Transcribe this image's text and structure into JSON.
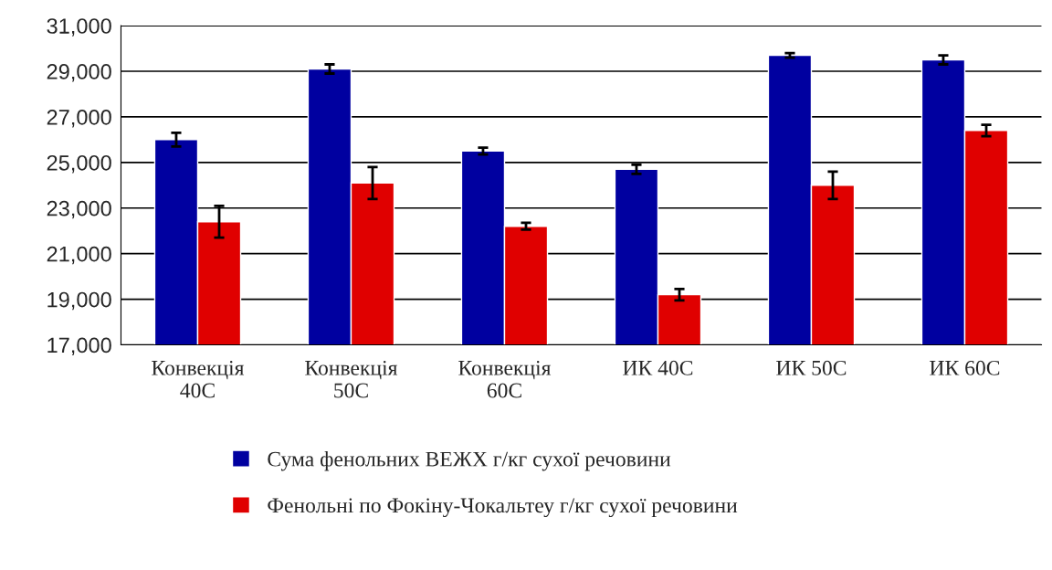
{
  "chart_data": {
    "type": "bar",
    "categories": [
      "Конвекція\n40C",
      "Конвекція\n50C",
      "Конвекція\n60C",
      "ИК 40C",
      "ИК 50C",
      "ИК 60C"
    ],
    "series": [
      {
        "name": "Сума фенольних ВЕЖХ г/кг сухої речовини",
        "color": "#0000a0",
        "values": [
          26000,
          29100,
          25500,
          24700,
          29700,
          29500
        ],
        "errors": [
          300,
          200,
          150,
          200,
          100,
          200
        ]
      },
      {
        "name": "Фенольні по Фокіну-Чокальтеу г/кг сухої речовини",
        "color": "#e00000",
        "values": [
          22400,
          24100,
          22200,
          19200,
          24000,
          26400
        ],
        "errors": [
          700,
          700,
          150,
          250,
          600,
          250
        ]
      }
    ],
    "ylim": [
      17000,
      31000
    ],
    "yticks": [
      {
        "value": 17000,
        "label": "17,000"
      },
      {
        "value": 19000,
        "label": "19,000"
      },
      {
        "value": 21000,
        "label": "21,000"
      },
      {
        "value": 23000,
        "label": "23,000"
      },
      {
        "value": 25000,
        "label": "25,000"
      },
      {
        "value": 27000,
        "label": "27,000"
      },
      {
        "value": 29000,
        "label": "29,000"
      },
      {
        "value": 31000,
        "label": "31,000"
      }
    ],
    "grid": "y",
    "legend": "bottom"
  }
}
